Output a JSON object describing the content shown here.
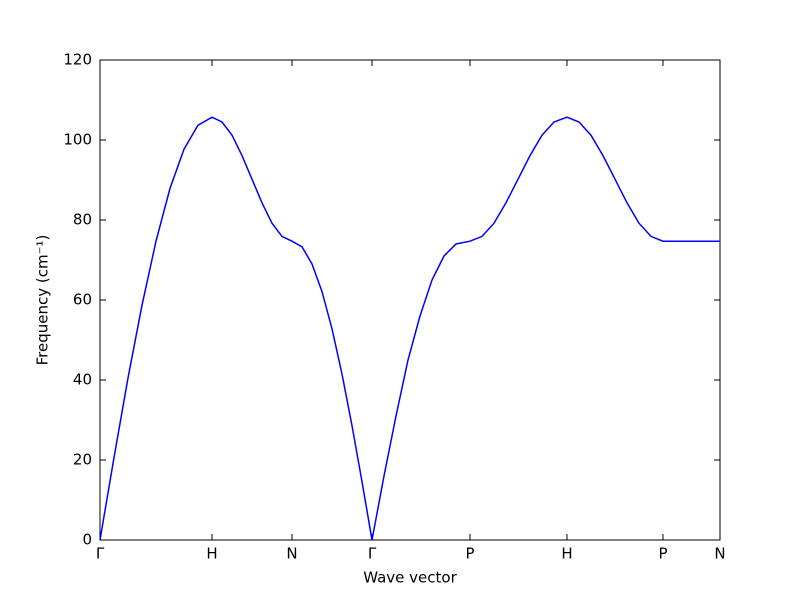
{
  "chart_data": {
    "type": "line",
    "x_label": "Wave vector",
    "y_label": "Frequency (cm⁻¹)",
    "xlim": [
      0,
      6.2
    ],
    "ylim": [
      0,
      120
    ],
    "xticks": [
      {
        "value": 0,
        "label": "Γ"
      },
      {
        "value": 1.12,
        "label": "H"
      },
      {
        "value": 1.92,
        "label": "N"
      },
      {
        "value": 2.72,
        "label": "Γ"
      },
      {
        "value": 3.7,
        "label": "P"
      },
      {
        "value": 4.67,
        "label": "H"
      },
      {
        "value": 5.63,
        "label": "P"
      },
      {
        "value": 6.2,
        "label": "N"
      }
    ],
    "yticks": [
      0,
      20,
      40,
      60,
      80,
      100,
      120
    ],
    "grid": false,
    "series": [
      {
        "color": "#0000ff",
        "x": [
          0,
          0.14,
          0.28,
          0.42,
          0.56,
          0.7,
          0.84,
          0.98,
          1.12,
          1.22,
          1.32,
          1.42,
          1.52,
          1.62,
          1.72,
          1.82,
          1.92,
          2.02,
          2.12,
          2.22,
          2.32,
          2.42,
          2.52,
          2.62,
          2.72,
          2.84,
          2.96,
          3.08,
          3.2,
          3.32,
          3.44,
          3.56,
          3.7,
          3.82,
          3.94,
          4.06,
          4.18,
          4.3,
          4.42,
          4.54,
          4.67,
          4.79,
          4.91,
          5.03,
          5.15,
          5.27,
          5.39,
          5.51,
          5.63,
          5.8,
          6.0,
          6.2
        ],
        "values": [
          0,
          20.6,
          40.5,
          58.7,
          74.7,
          87.9,
          97.7,
          103.7,
          105.7,
          104.5,
          101.2,
          96.1,
          90.2,
          84.3,
          79.2,
          75.9,
          74.7,
          73.3,
          69.0,
          62.1,
          52.8,
          41.5,
          28.6,
          14.6,
          0,
          16,
          31,
          45,
          56,
          65,
          71,
          74,
          74.7,
          75.9,
          79.2,
          84.3,
          90.2,
          96.1,
          101.2,
          104.5,
          105.7,
          104.5,
          101.2,
          96.1,
          90.2,
          84.3,
          79.2,
          75.9,
          74.7,
          74.7,
          74.7,
          74.7
        ]
      }
    ]
  }
}
